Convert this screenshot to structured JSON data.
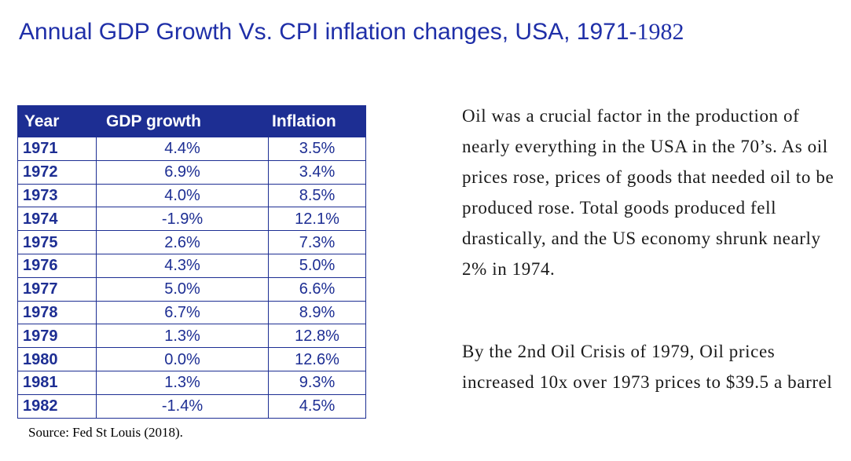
{
  "title": {
    "main": "Annual GDP Growth Vs. CPI inflation changes, USA, 1971-",
    "end_year": "1982"
  },
  "table": {
    "headers": [
      "Year",
      "GDP growth",
      "Inflation"
    ],
    "rows": [
      [
        "1971",
        "4.4%",
        "3.5%"
      ],
      [
        "1972",
        "6.9%",
        "3.4%"
      ],
      [
        "1973",
        "4.0%",
        "8.5%"
      ],
      [
        "1974",
        "-1.9%",
        "12.1%"
      ],
      [
        "1975",
        "2.6%",
        "7.3%"
      ],
      [
        "1976",
        "4.3%",
        "5.0%"
      ],
      [
        "1977",
        "5.0%",
        "6.6%"
      ],
      [
        "1978",
        "6.7%",
        "8.9%"
      ],
      [
        "1979",
        "1.3%",
        "12.8%"
      ],
      [
        "1980",
        "0.0%",
        "12.6%"
      ],
      [
        "1981",
        "1.3%",
        "9.3%"
      ],
      [
        "1982",
        "-1.4%",
        "4.5%"
      ]
    ]
  },
  "source": "Source: Fed St Louis (2018).",
  "paragraphs": [
    "Oil was a crucial factor in the production of nearly everything in the USA in the 70’s. As oil prices rose, prices of goods that needed oil to be produced rose. Total goods produced fell drastically, and the US economy shrunk nearly 2% in 1974.",
    "By the 2nd Oil Crisis of 1979, Oil prices increased 10x over 1973 prices to $39.5 a barrel"
  ],
  "colors": {
    "header_bg": "#1d2e93",
    "title": "#1f2fa8",
    "table_text": "#1d2e93"
  }
}
